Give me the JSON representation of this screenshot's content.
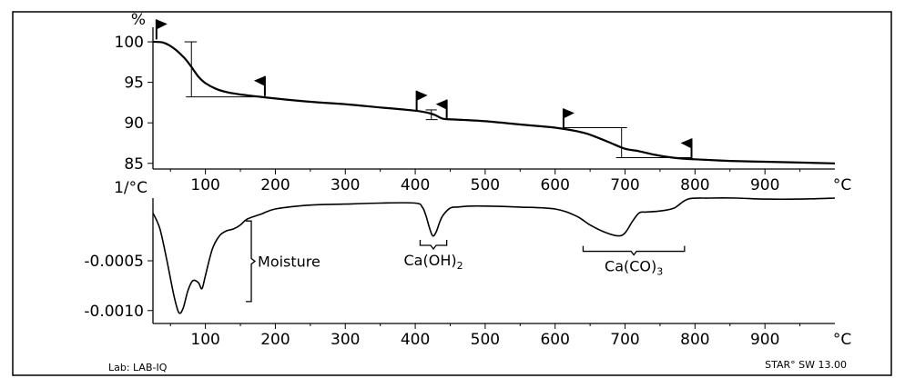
{
  "chart_data": [
    {
      "type": "line",
      "title": "",
      "ylabel": "%",
      "xlabel": "°C",
      "x_ticks": [
        100,
        200,
        300,
        400,
        500,
        600,
        700,
        800,
        900
      ],
      "y_ticks": [
        100,
        95,
        90,
        85
      ],
      "xlim": [
        25,
        1000
      ],
      "ylim": [
        84.3,
        101.8
      ],
      "grid": false,
      "series": [
        {
          "x": [
            25,
            40,
            55,
            70,
            80,
            90,
            100,
            115,
            130,
            150,
            170,
            200,
            250,
            300,
            350,
            400,
            420,
            430,
            440,
            460,
            500,
            550,
            600,
            640,
            660,
            680,
            700,
            720,
            740,
            760,
            780,
            800,
            850,
            900,
            950,
            1000
          ],
          "y": [
            100.0,
            99.9,
            99.2,
            98.0,
            96.9,
            95.7,
            94.9,
            94.2,
            93.8,
            93.5,
            93.3,
            93.0,
            92.6,
            92.3,
            91.9,
            91.5,
            91.2,
            90.9,
            90.5,
            90.4,
            90.2,
            89.8,
            89.4,
            88.8,
            88.2,
            87.5,
            86.8,
            86.5,
            86.1,
            85.8,
            85.6,
            85.5,
            85.3,
            85.2,
            85.1,
            85.0
          ]
        }
      ],
      "step_markers": [
        {
          "x": 80,
          "y_top": 100.0,
          "y_bottom": 93.2,
          "cross_x": [
            70,
            185
          ]
        },
        {
          "x": 423,
          "y_top": 91.6,
          "y_bottom": 90.4,
          "cross_x": [
            415,
            432
          ]
        },
        {
          "x": 695,
          "y_top": 89.4,
          "y_bottom": 85.7,
          "cross_x": [
            612,
            795
          ]
        }
      ],
      "flags": [
        {
          "x": 30,
          "y": 100.3,
          "dir": "right"
        },
        {
          "x": 185,
          "y": 93.3,
          "dir": "left"
        },
        {
          "x": 402,
          "y": 91.5,
          "dir": "right"
        },
        {
          "x": 445,
          "y": 90.4,
          "dir": "left"
        },
        {
          "x": 612,
          "y": 89.3,
          "dir": "right"
        },
        {
          "x": 795,
          "y": 85.6,
          "dir": "left"
        }
      ]
    },
    {
      "type": "line",
      "title": "",
      "ylabel": "1/°C",
      "xlabel": "°C",
      "x_ticks": [
        100,
        200,
        300,
        400,
        500,
        600,
        700,
        800,
        900
      ],
      "y_ticks": [
        -0.0005,
        -0.001
      ],
      "y_tick_labels": [
        "-0.0005",
        "-0.0010"
      ],
      "xlim": [
        25,
        1000
      ],
      "ylim": [
        -0.00113,
        0.00013
      ],
      "grid": false,
      "series": [
        {
          "x": [
            25,
            35,
            45,
            55,
            62,
            68,
            75,
            82,
            90,
            95,
            100,
            110,
            120,
            130,
            140,
            150,
            160,
            180,
            200,
            250,
            300,
            350,
            400,
            410,
            415,
            420,
            425,
            430,
            435,
            440,
            450,
            460,
            480,
            500,
            550,
            600,
            630,
            650,
            670,
            690,
            700,
            710,
            720,
            730,
            750,
            770,
            790,
            820,
            860,
            900,
            950,
            1000
          ],
          "y": [
            -2e-05,
            -0.00018,
            -0.0005,
            -0.00085,
            -0.00102,
            -0.00098,
            -0.0008,
            -0.0007,
            -0.00072,
            -0.00078,
            -0.00065,
            -0.00038,
            -0.00025,
            -0.0002,
            -0.00018,
            -0.00014,
            -8e-05,
            -3e-05,
            2e-05,
            6e-05,
            7e-05,
            8e-05,
            8e-05,
            4e-05,
            -4e-05,
            -0.00016,
            -0.00025,
            -0.00021,
            -0.00011,
            -4e-05,
            3e-05,
            4e-05,
            5e-05,
            5e-05,
            4e-05,
            2e-05,
            -5e-05,
            -0.00014,
            -0.00021,
            -0.00025,
            -0.00022,
            -0.00011,
            -2e-05,
            -1e-05,
            0.0,
            3e-05,
            0.00012,
            0.00013,
            0.00013,
            0.00012,
            0.00012,
            0.00013
          ]
        }
      ],
      "annotations": [
        {
          "label": "Moisture",
          "x_center": 150,
          "y_top": -0.0001,
          "y_bottom": -0.00091,
          "brace": "right"
        },
        {
          "label": "Ca(OH)",
          "sub": "2",
          "x_start": 407,
          "x_end": 445,
          "y": -0.00029,
          "brace": "down"
        },
        {
          "label": "Ca(CO)",
          "sub": "3",
          "x_start": 640,
          "x_end": 785,
          "y": -0.00035,
          "brace": "down"
        }
      ]
    }
  ],
  "footer": {
    "lab": "Lab: LAB-IQ",
    "software": "STAR° SW 13.00"
  }
}
